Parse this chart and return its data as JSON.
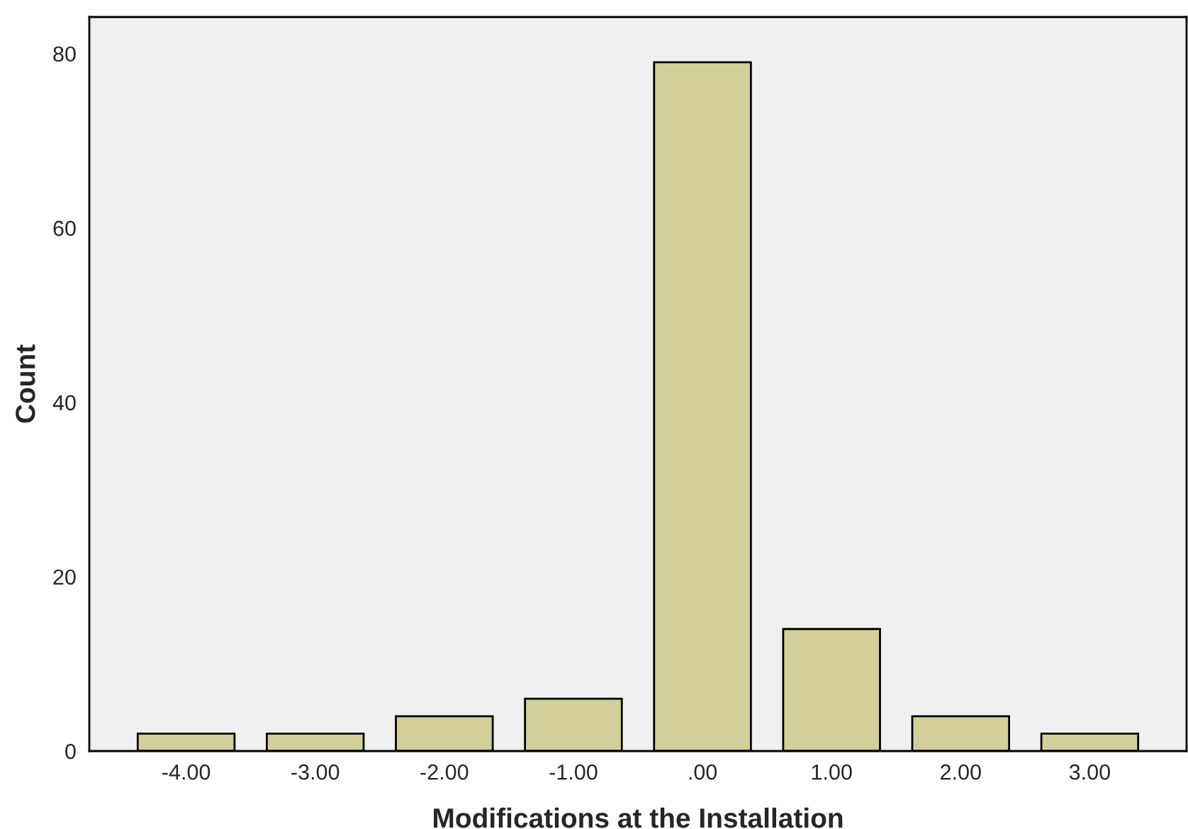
{
  "chart_data": {
    "type": "bar",
    "xlabel": "Modifications at the Installation",
    "ylabel": "Count",
    "categories": [
      "-4.00",
      "-3.00",
      "-2.00",
      "-1.00",
      ".00",
      "1.00",
      "2.00",
      "3.00"
    ],
    "values": [
      2,
      2,
      4,
      6,
      79,
      14,
      4,
      2
    ],
    "color": "#d3cf98",
    "ylim": [
      0,
      84.2
    ],
    "yticks": [
      0,
      20,
      40,
      60,
      80
    ],
    "grid": false,
    "legend": false
  }
}
